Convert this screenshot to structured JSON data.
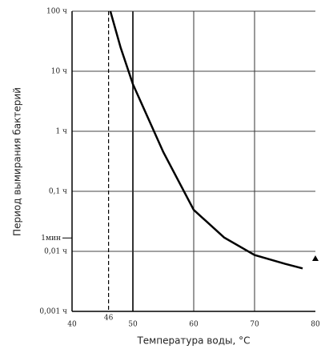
{
  "chart_data": {
    "type": "line",
    "x_label": "Температура воды, °С",
    "y_label": "Период вымирания бактерий",
    "log_y": true,
    "xlim": [
      40,
      80
    ],
    "xticks": [
      40,
      50,
      60,
      70,
      80
    ],
    "ylim": [
      0.001,
      100
    ],
    "yticks": [
      {
        "value": 100,
        "label": "100 ч"
      },
      {
        "value": 10,
        "label": "10 ч"
      },
      {
        "value": 1,
        "label": "1 ч"
      },
      {
        "value": 0.1,
        "label": "0,1 ч"
      },
      {
        "value": 0.01,
        "label": "0,01 ч"
      },
      {
        "value": 0.001,
        "label": "0,001 ч"
      }
    ],
    "grid": true,
    "y_marker": {
      "value": 0.0167,
      "label": "1мин"
    },
    "dashed_x": 46,
    "series": [
      {
        "color": "#000000",
        "x": [
          46.3,
          48,
          50,
          55,
          60,
          65,
          70,
          75,
          77.9
        ],
        "values": [
          100,
          24.5,
          6.1,
          0.45,
          0.049,
          0.017,
          0.0087,
          0.0062,
          0.0052
        ]
      }
    ]
  }
}
